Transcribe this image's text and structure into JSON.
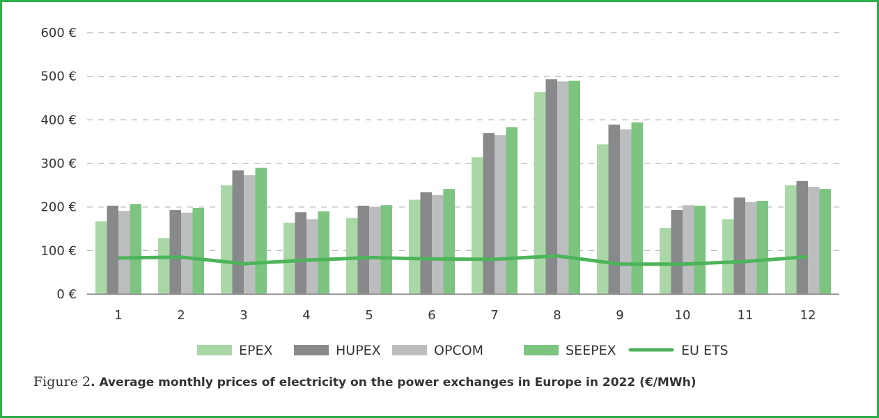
{
  "chart_data": {
    "type": "bar",
    "title": "",
    "xlabel": "",
    "ylabel": "",
    "categories": [
      "1",
      "2",
      "3",
      "4",
      "5",
      "6",
      "7",
      "8",
      "9",
      "10",
      "11",
      "12"
    ],
    "ylim": [
      0,
      600
    ],
    "yticks": [
      0,
      100,
      200,
      300,
      400,
      500,
      600
    ],
    "ytick_labels": [
      "0 €",
      "100  €",
      "200  €",
      "300 €",
      "400 €",
      "500 €",
      "600 €"
    ],
    "grid": true,
    "legend_position": "bottom",
    "series": [
      {
        "name": "EPEX",
        "type": "bar",
        "color": "#a9d8a6",
        "values": [
          167,
          129,
          250,
          164,
          175,
          217,
          314,
          464,
          344,
          152,
          172,
          250
        ]
      },
      {
        "name": "HUPEX",
        "type": "bar",
        "color": "#88898b",
        "values": [
          203,
          193,
          284,
          188,
          203,
          234,
          370,
          493,
          389,
          193,
          222,
          260
        ]
      },
      {
        "name": "OPCOM",
        "type": "bar",
        "color": "#bcbdbf",
        "values": [
          191,
          187,
          273,
          172,
          201,
          228,
          365,
          488,
          378,
          204,
          212,
          246
        ]
      },
      {
        "name": "SEEPEX",
        "type": "bar",
        "color": "#7cc47f",
        "values": [
          207,
          198,
          290,
          190,
          204,
          241,
          383,
          490,
          394,
          203,
          214,
          241
        ]
      },
      {
        "name": "EU ETS",
        "type": "line",
        "color": "#4db45a",
        "values": [
          83,
          85,
          70,
          78,
          84,
          81,
          80,
          88,
          69,
          69,
          75,
          86
        ]
      }
    ]
  },
  "caption": {
    "label": "Figure 2",
    "title": ". Average monthly prices of electricity on the power exchanges in Europe in 2022 (€/MWh)"
  }
}
